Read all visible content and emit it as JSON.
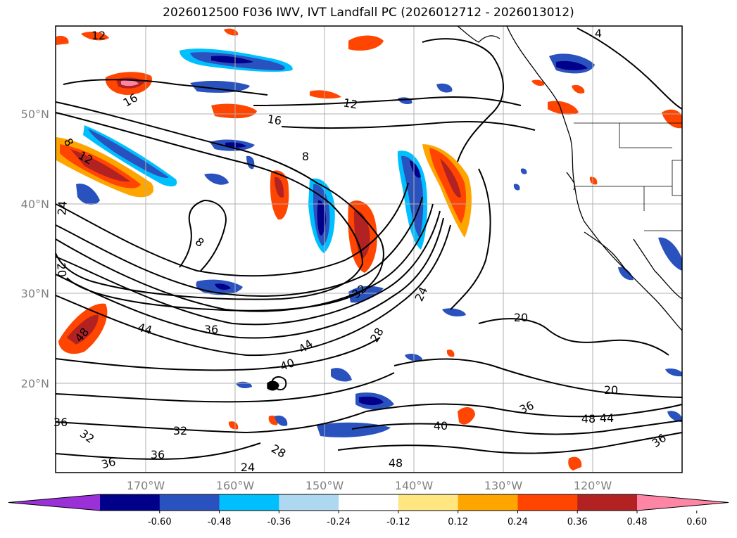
{
  "title": "2026012500 F036 IWV, IVT Landfall PC (2026012712 - 2026013012)",
  "lat_labels": [
    "50°N",
    "40°N",
    "30°N",
    "20°N"
  ],
  "lon_labels": [
    "170°W",
    "160°W",
    "150°W",
    "140°W",
    "130°W",
    "120°W"
  ],
  "contour_labels": [
    {
      "text": "12"
    },
    {
      "text": "16"
    },
    {
      "text": "12"
    },
    {
      "text": "16"
    },
    {
      "text": "8"
    },
    {
      "text": "12"
    },
    {
      "text": "8"
    },
    {
      "text": "8"
    },
    {
      "text": "24"
    },
    {
      "text": "20"
    },
    {
      "text": "48"
    },
    {
      "text": "44"
    },
    {
      "text": "36"
    },
    {
      "text": "32"
    },
    {
      "text": "24"
    },
    {
      "text": "28"
    },
    {
      "text": "44"
    },
    {
      "text": "40"
    },
    {
      "text": "20"
    },
    {
      "text": "20"
    },
    {
      "text": "36"
    },
    {
      "text": "48"
    },
    {
      "text": "44"
    },
    {
      "text": "40"
    },
    {
      "text": "36"
    },
    {
      "text": "36"
    },
    {
      "text": "32"
    },
    {
      "text": "32"
    },
    {
      "text": "36"
    },
    {
      "text": "24"
    },
    {
      "text": "28"
    },
    {
      "text": "48"
    },
    {
      "text": "36"
    },
    {
      "text": "4"
    }
  ],
  "colorbar": {
    "colors": [
      "#9b30d9",
      "#00008b",
      "#2a52be",
      "#00bfff",
      "#add8f0",
      "#ffffff",
      "#ffe680",
      "#ffa500",
      "#ff4500",
      "#b22222",
      "#ff85a5"
    ],
    "tick_labels": [
      "-0.60",
      "-0.48",
      "-0.36",
      "-0.24",
      "-0.12",
      "0.12",
      "0.24",
      "0.36",
      "0.48",
      "0.60"
    ]
  },
  "colors": {
    "gridline": "#b0b0b0",
    "coastline": "#000000",
    "contour": "#000000"
  }
}
